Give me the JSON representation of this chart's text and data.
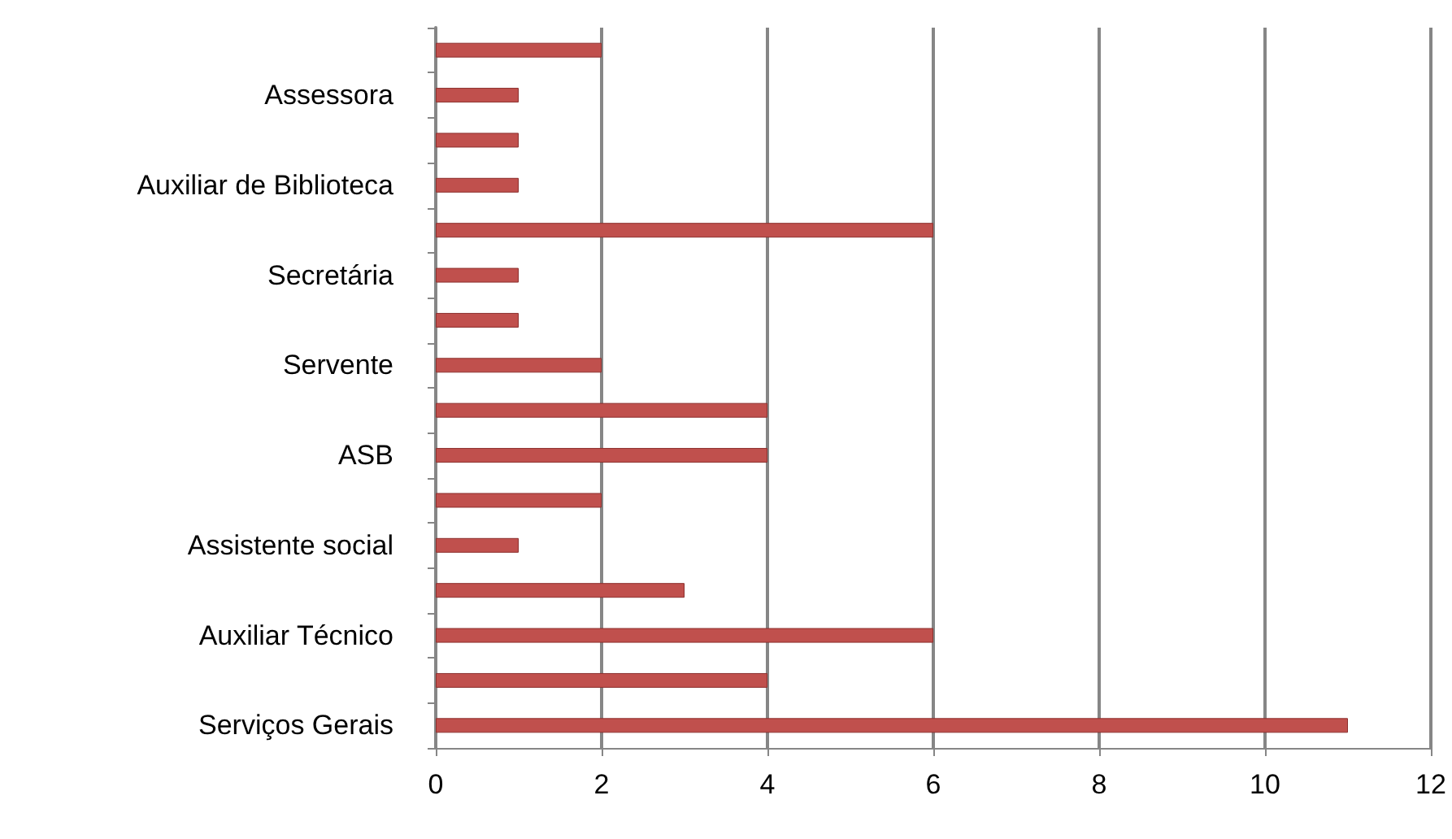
{
  "chart_data": {
    "type": "bar",
    "orientation": "horizontal",
    "categories": [
      null,
      "Assessora",
      null,
      "Auxiliar de Biblioteca",
      null,
      "Secretária",
      null,
      "Servente",
      null,
      "ASB",
      null,
      "Assistente social",
      null,
      "Auxiliar Técnico",
      null,
      "Serviços Gerais"
    ],
    "values": [
      2,
      1,
      1,
      1,
      6,
      1,
      1,
      2,
      4,
      4,
      2,
      1,
      3,
      6,
      4,
      11
    ],
    "color": "#c0504d",
    "xlim": [
      0,
      12
    ],
    "xticks": [
      0,
      2,
      4,
      6,
      8,
      10,
      12
    ],
    "grid": "x"
  }
}
